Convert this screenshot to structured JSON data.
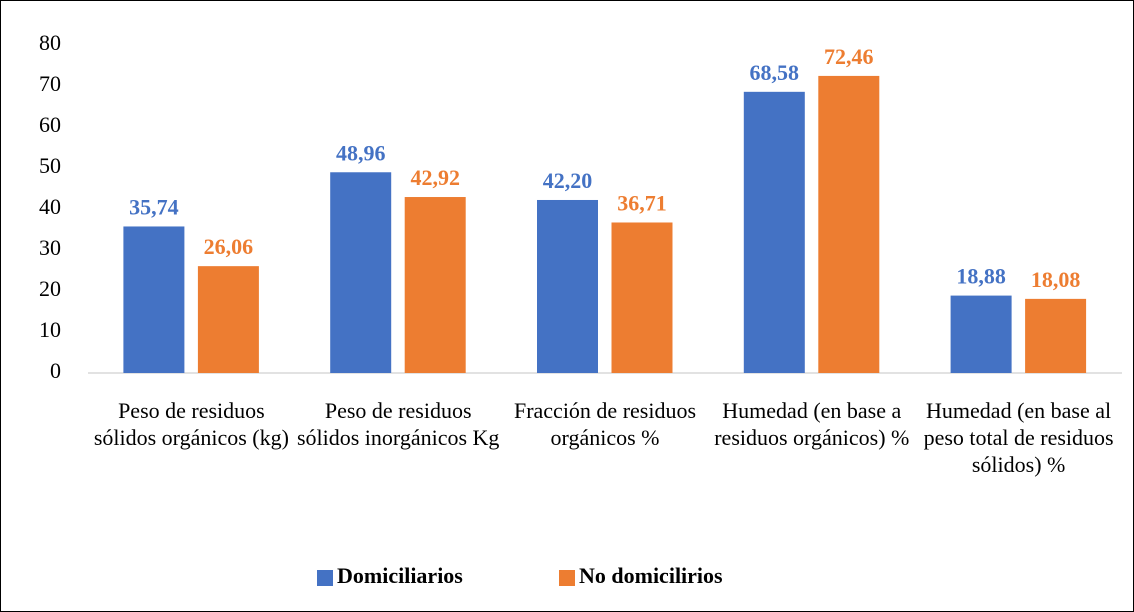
{
  "chart_data": {
    "type": "bar",
    "categories": [
      "Peso de residuos sólidos orgánicos (kg)",
      "Peso de residuos sólidos inorgánicos Kg",
      "Fracción de residuos orgánicos %",
      "Humedad (en base a residuos orgánicos) %",
      "Humedad (en base al peso total de residuos sólidos) %"
    ],
    "series": [
      {
        "name": "Domiciliarios",
        "color": "#4472c4",
        "values": [
          35.74,
          48.96,
          42.2,
          68.58,
          18.88
        ],
        "value_labels": [
          "35,74",
          "48,96",
          "42,20",
          "68,58",
          "18,88"
        ]
      },
      {
        "name": "No domicilirios",
        "color": "#ed7d31",
        "values": [
          26.06,
          42.92,
          36.71,
          72.46,
          18.08
        ],
        "value_labels": [
          "26,06",
          "42,92",
          "36,71",
          "72,46",
          "18,08"
        ]
      }
    ],
    "ylim": [
      0,
      80
    ],
    "yticks": [
      0,
      10,
      20,
      30,
      40,
      50,
      60,
      70,
      80
    ],
    "grid": false,
    "legend": "bottom"
  }
}
